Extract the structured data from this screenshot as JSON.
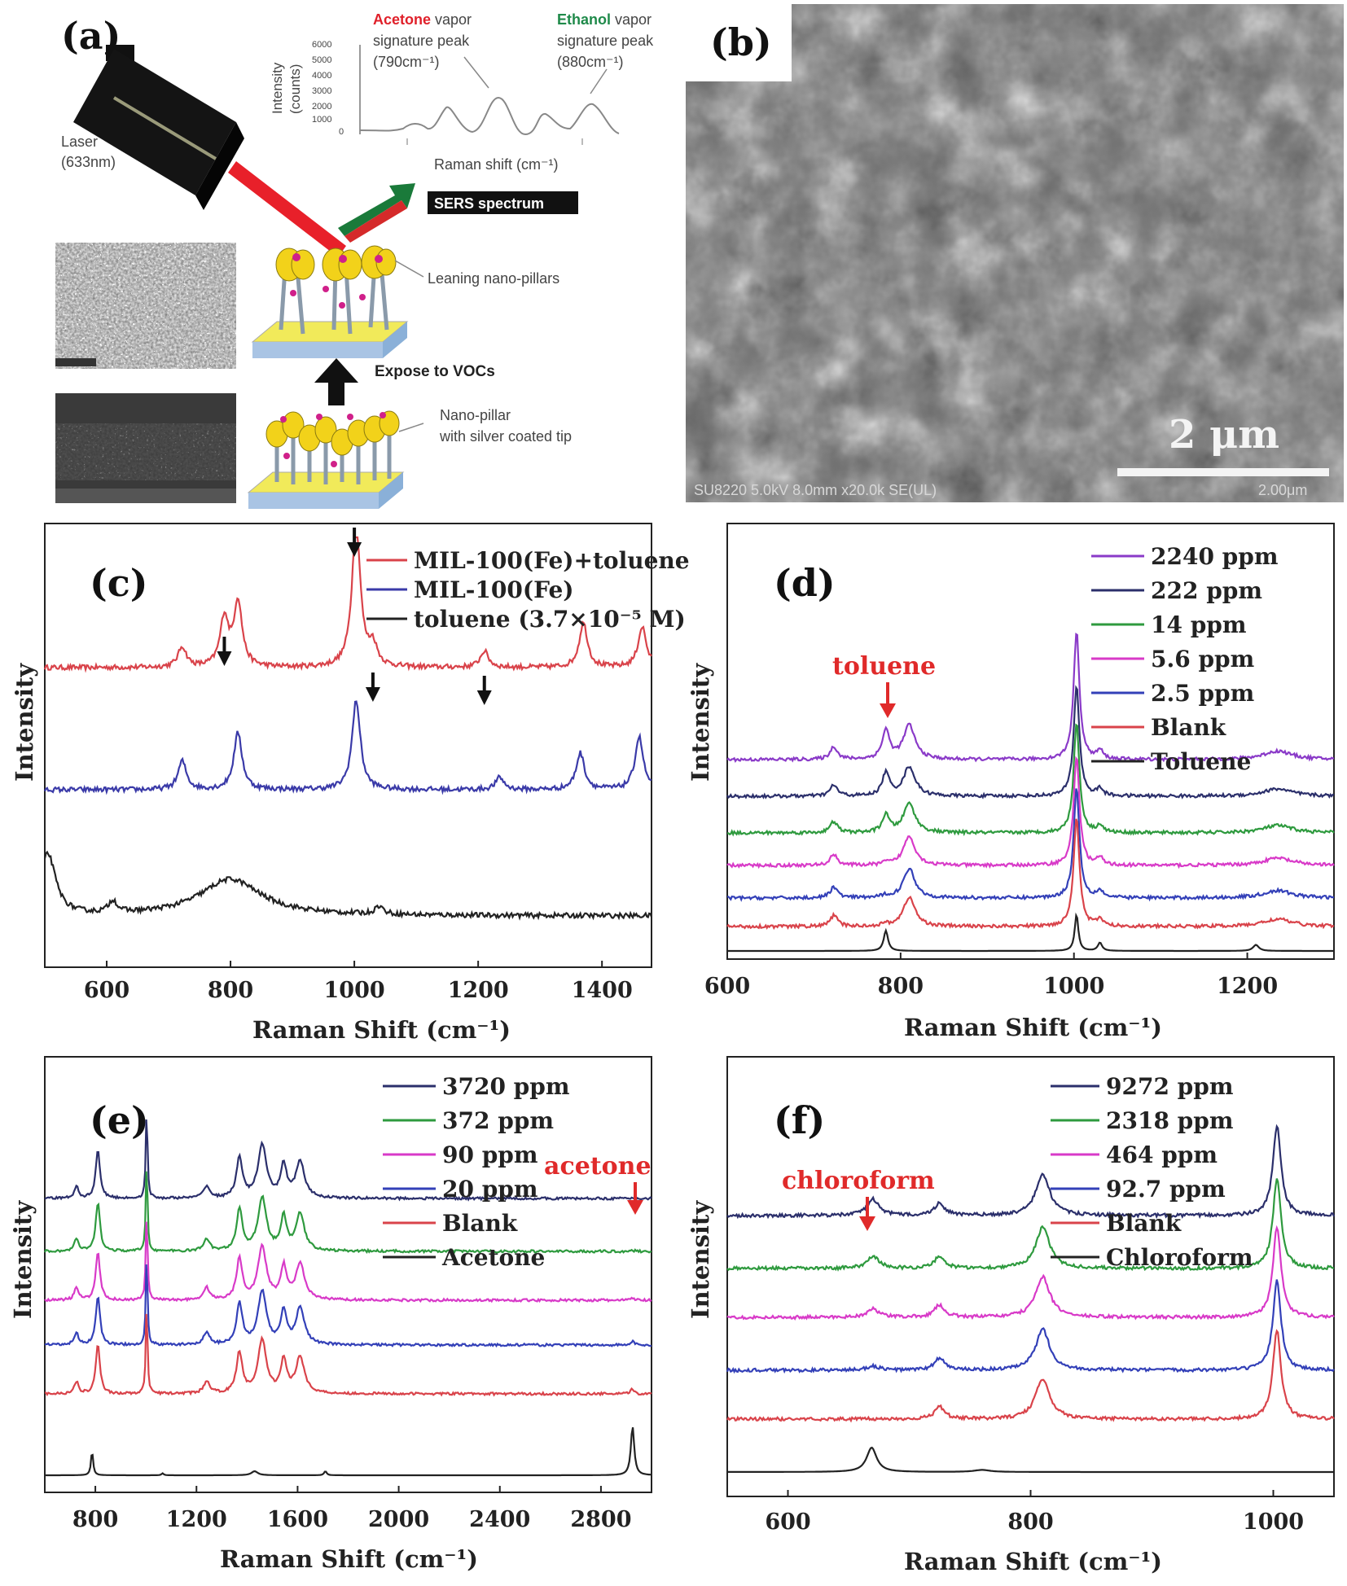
{
  "panel_a": {
    "label": "(a)",
    "laser_label": "Laser",
    "laser_wavelength": "(633nm)",
    "acetone_word": "Acetone",
    "acetone_rest": " vapor",
    "acetone_line2": "signature peak",
    "acetone_line3": "(790cm⁻¹)",
    "ethanol_word": "Ethanol",
    "ethanol_rest": " vapor",
    "ethanol_line2": "signature peak",
    "ethanol_line3": "(880cm⁻¹)",
    "inset_ylabel_1": "Intensity",
    "inset_ylabel_2": "(counts)",
    "inset_yticks": [
      "6000",
      "5000",
      "4000",
      "3000",
      "2000",
      "1000",
      "0"
    ],
    "inset_xlabel": "Raman  shift (cm⁻¹)",
    "sers_box": "SERS spectrum",
    "leaning_label": "Leaning nano-pillars",
    "expose_label": "Expose to VOCs",
    "pillar_label_1": "Nano-pillar",
    "pillar_label_2": "with silver coated tip",
    "colors": {
      "acetone": "#e0202a",
      "ethanol": "#1f8a4a",
      "laser": "#e8202a"
    }
  },
  "panel_b": {
    "label": "(b)",
    "scale_text": "2 μm",
    "footer": "SU8220 5.0kV 8.0mm x20.0k SE(UL)",
    "footer_right": "2.00μm"
  },
  "chart_data": [
    {
      "panel": "(c)",
      "type": "line",
      "xlabel": "Raman Shift (cm⁻¹)",
      "ylabel": "Intensity",
      "xlim": [
        500,
        1480
      ],
      "xticks": [
        600,
        800,
        1000,
        1200,
        1400
      ],
      "yticks": "none",
      "arrows_x": [
        1000,
        790,
        1030,
        1210
      ],
      "series": [
        {
          "name": "MIL-100(Fe)+toluene",
          "color": "#d9434a",
          "offset": 0.68,
          "peaks": [
            [
              722,
              0.05
            ],
            [
              790,
              0.12
            ],
            [
              812,
              0.16
            ],
            [
              1003,
              0.36
            ],
            [
              1030,
              0.05
            ],
            [
              1210,
              0.04
            ],
            [
              1370,
              0.11
            ],
            [
              1465,
              0.1
            ]
          ]
        },
        {
          "name": "MIL-100(Fe)",
          "color": "#3a3aa8",
          "offset": 0.38,
          "peaks": [
            [
              722,
              0.07
            ],
            [
              812,
              0.14
            ],
            [
              1003,
              0.22
            ],
            [
              1235,
              0.03
            ],
            [
              1365,
              0.09
            ],
            [
              1460,
              0.13
            ]
          ]
        },
        {
          "name": "toluene (3.7×10⁻⁵ M)",
          "color": "#222222",
          "offset": 0.07,
          "peaks": [
            [
              505,
              0.15
            ],
            [
              610,
              0.03
            ],
            [
              800,
              0.09
            ],
            [
              1040,
              0.02
            ]
          ]
        }
      ]
    },
    {
      "panel": "(d)",
      "type": "line",
      "xlabel": "Raman Shift (cm⁻¹)",
      "ylabel": "Intensity",
      "annotation": "toluene",
      "xlim": [
        600,
        1300
      ],
      "xticks": [
        600,
        800,
        1000,
        1200
      ],
      "yticks": "none",
      "series": [
        {
          "name": "2240 ppm",
          "color": "#8a3ac8",
          "offset": 0.47
        },
        {
          "name": "222 ppm",
          "color": "#2b2f6b",
          "offset": 0.38
        },
        {
          "name": "14 ppm",
          "color": "#2e9a3e",
          "offset": 0.29
        },
        {
          "name": "5.6 ppm",
          "color": "#d83ac8",
          "offset": 0.21
        },
        {
          "name": "2.5 ppm",
          "color": "#3340b8",
          "offset": 0.13
        },
        {
          "name": "Blank",
          "color": "#d9434a",
          "offset": 0.06
        },
        {
          "name": "Toluene",
          "color": "#222222",
          "offset": 0.0
        }
      ]
    },
    {
      "panel": "(e)",
      "type": "line",
      "xlabel": "Raman Shift (cm⁻¹)",
      "ylabel": "Intensity",
      "annotation": "acetone",
      "xlim": [
        600,
        3000
      ],
      "xticks": [
        800,
        1200,
        1600,
        2000,
        2400,
        2800
      ],
      "yticks": "none",
      "series": [
        {
          "name": "3720 ppm",
          "color": "#2b2f6b",
          "offset": 0.7
        },
        {
          "name": "372 ppm",
          "color": "#2e9a3e",
          "offset": 0.57
        },
        {
          "name": "90 ppm",
          "color": "#d83ac8",
          "offset": 0.45
        },
        {
          "name": "20 ppm",
          "color": "#3340b8",
          "offset": 0.34
        },
        {
          "name": "Blank",
          "color": "#d9434a",
          "offset": 0.22
        },
        {
          "name": "Acetone",
          "color": "#222222",
          "offset": 0.02
        }
      ]
    },
    {
      "panel": "(f)",
      "type": "line",
      "xlabel": "Raman Shift (cm⁻¹)",
      "ylabel": "Intensity",
      "annotation": "chloroform",
      "xlim": [
        550,
        1050
      ],
      "xticks": [
        600,
        800,
        1000
      ],
      "yticks": "none",
      "series": [
        {
          "name": "9272 ppm",
          "color": "#2b2f6b",
          "offset": 0.63
        },
        {
          "name": "2318 ppm",
          "color": "#2e9a3e",
          "offset": 0.5
        },
        {
          "name": "464 ppm",
          "color": "#d83ac8",
          "offset": 0.38
        },
        {
          "name": "92.7 ppm",
          "color": "#3340b8",
          "offset": 0.25
        },
        {
          "name": "Blank",
          "color": "#d9434a",
          "offset": 0.13
        },
        {
          "name": "Chloroform",
          "color": "#222222",
          "offset": 0.0
        }
      ]
    }
  ]
}
